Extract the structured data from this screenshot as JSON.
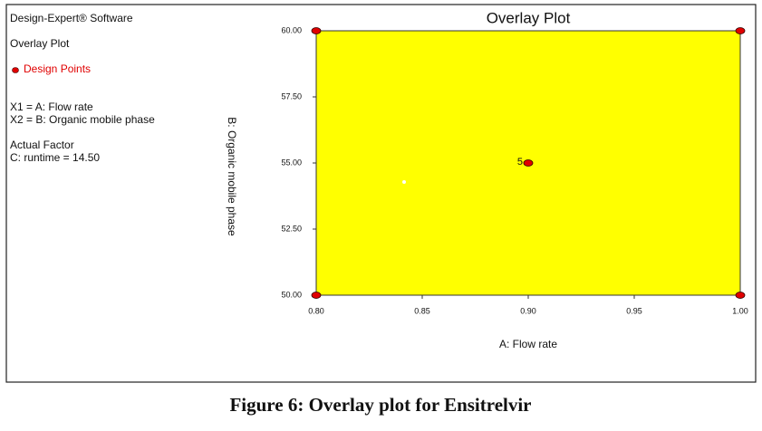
{
  "side_panel": {
    "software": "Design-Expert® Software",
    "plot_name": "Overlay Plot",
    "legend_label": "Design Points",
    "factors": [
      "X1 = A: Flow rate",
      "X2 = B: Organic mobile phase"
    ],
    "actual_factor_heading": "Actual Factor",
    "actual_factor": "C: runtime = 14.50"
  },
  "caption": "Figure 6: Overlay plot for Ensitrelvir",
  "chart_data": {
    "type": "scatter",
    "title": "Overlay Plot",
    "x_label": "A: Flow rate",
    "y_label": "B: Organic mobile phase",
    "region_color": "#ffff00",
    "series": [
      {
        "name": "Design Points",
        "color": "#e00000",
        "x": [
          0.8,
          0.8,
          1.0,
          1.0,
          0.9
        ],
        "values": [
          50,
          60,
          50,
          60,
          55
        ],
        "point_counts": [
          null,
          null,
          null,
          null,
          5
        ]
      }
    ],
    "xlim": [
      0.8,
      1.0
    ],
    "xticks": [
      {
        "value": 0.8,
        "label": "0.80"
      },
      {
        "value": 0.85,
        "label": "0.85"
      },
      {
        "value": 0.9,
        "label": "0.90"
      },
      {
        "value": 0.95,
        "label": "0.95"
      },
      {
        "value": 1.0,
        "label": "1.00"
      }
    ],
    "ylim": [
      50,
      60
    ],
    "yticks": [
      {
        "value": 50,
        "label": "50.00"
      },
      {
        "value": 52.5,
        "label": "52.50"
      },
      {
        "value": 55,
        "label": "55.00"
      },
      {
        "value": 57.5,
        "label": "57.50"
      },
      {
        "value": 60,
        "label": "60.00"
      }
    ]
  }
}
